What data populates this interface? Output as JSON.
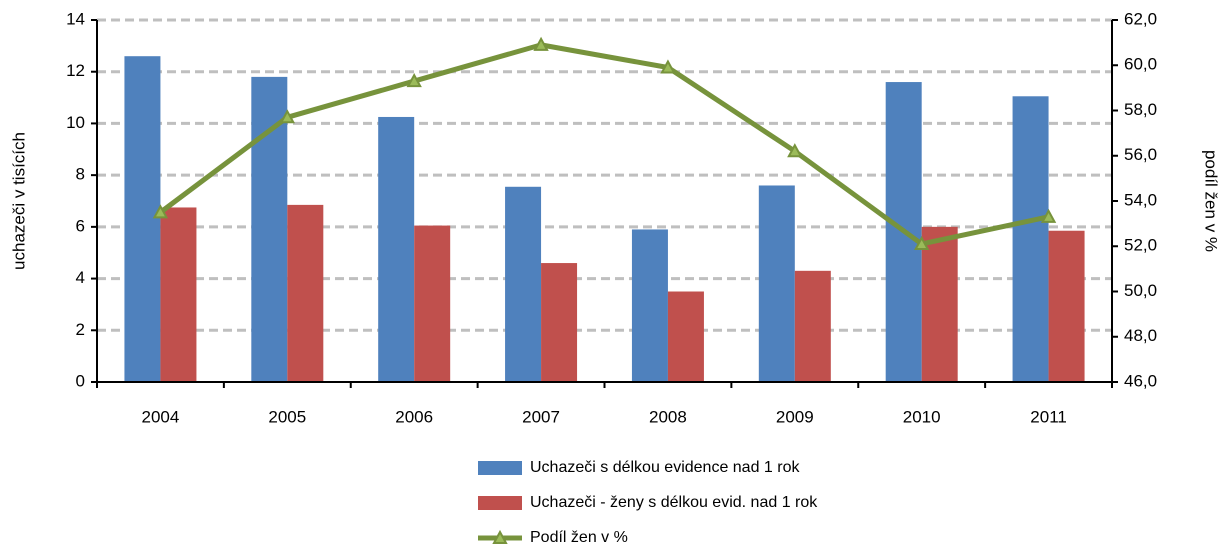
{
  "chart_data": {
    "type": "bar",
    "ylabel": "uchazeči v tisících",
    "y2label": "podíl žen v %",
    "categories": [
      "2004",
      "2005",
      "2006",
      "2007",
      "2008",
      "2009",
      "2010",
      "2011"
    ],
    "series": [
      {
        "name": "Uchazeči s délkou evidence nad 1 rok",
        "type": "bar",
        "color": "#4f81bd",
        "values": [
          12.6,
          11.8,
          10.25,
          7.55,
          5.9,
          7.6,
          11.6,
          11.05
        ]
      },
      {
        "name": "Uchazeči  - ženy s délkou evid. nad 1 rok",
        "type": "bar",
        "color": "#c0504d",
        "values": [
          6.75,
          6.85,
          6.05,
          4.6,
          3.5,
          4.3,
          6.0,
          5.85
        ]
      },
      {
        "name": "Podíl žen v %",
        "type": "line",
        "axis": "y2",
        "color": "#77933c",
        "values": [
          53.5,
          57.7,
          59.3,
          60.9,
          59.9,
          56.2,
          52.1,
          53.3
        ]
      }
    ],
    "ylim": [
      0,
      14
    ],
    "yticks": [
      0,
      2,
      4,
      6,
      8,
      10,
      12,
      14
    ],
    "y2lim": [
      46,
      62
    ],
    "y2ticks": [
      {
        "value": 46,
        "label": "46,0"
      },
      {
        "value": 48,
        "label": "48,0"
      },
      {
        "value": 50,
        "label": "50,0"
      },
      {
        "value": 52,
        "label": "52,0"
      },
      {
        "value": 54,
        "label": "54,0"
      },
      {
        "value": 56,
        "label": "56,0"
      },
      {
        "value": 58,
        "label": "58,0"
      },
      {
        "value": 60,
        "label": "60,0"
      },
      {
        "value": 62,
        "label": "62,0"
      }
    ],
    "grid": true,
    "legend": "bottom"
  }
}
